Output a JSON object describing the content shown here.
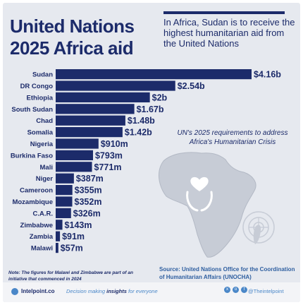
{
  "header": {
    "title_line1": "United Nations",
    "title_line2": "2025 Africa aid",
    "subtitle": "In Africa, Sudan is to receive the highest humanitarian aid from the United Nations"
  },
  "annotation": "UN's 2025 requirements to address Africa's Humanitarian Crisis",
  "note": "Note: The figures for Malawi and Zimbabwe are part of an initiative that commenced in 2024",
  "source": "Source: United Nations Office for the Coordination of Humanitarian Affairs (UNOCHA)",
  "footer": {
    "brand": "Intelpoint.co",
    "tagline_pre": "Decision making ",
    "tagline_bold": "insights",
    "tagline_post": " for everyone",
    "social_handle": "@Theintelpoint",
    "social_icons": [
      "x-icon",
      "instagram-icon",
      "facebook-icon"
    ]
  },
  "colors": {
    "bar": "#1c2b6a",
    "title": "#1c2b6a",
    "source": "#2f5fa0",
    "background": "#e6e9ef",
    "map": "#c7ccd6"
  },
  "chart_data": {
    "type": "bar",
    "orientation": "horizontal",
    "categories": [
      "Sudan",
      "DR Congo",
      "Ethiopia",
      "South Sudan",
      "Chad",
      "Somalia",
      "Nigeria",
      "Burkina Faso",
      "Mali",
      "Niger",
      "Cameroon",
      "Mozambique",
      "C.A.R.",
      "Zimbabwe",
      "Zambia",
      "Malawi"
    ],
    "values": [
      4.16,
      2.54,
      2.0,
      1.67,
      1.48,
      1.42,
      0.91,
      0.793,
      0.771,
      0.387,
      0.355,
      0.352,
      0.326,
      0.143,
      0.091,
      0.057
    ],
    "labels": [
      "$4.16b",
      "$2.54b",
      "$2b",
      "$1.67b",
      "$1.48b",
      "$1.42b",
      "$910m",
      "$793m",
      "$771m",
      "$387m",
      "$355m",
      "$352m",
      "$326m",
      "$143m",
      "$91m",
      "$57m"
    ],
    "unit": "USD billions",
    "xlim": [
      0,
      4.16
    ],
    "grid": false,
    "legend": "none"
  }
}
